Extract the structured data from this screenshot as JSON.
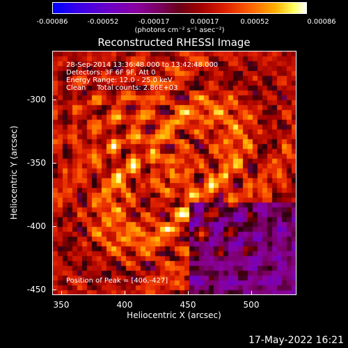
{
  "colorbar": {
    "tick_labels": [
      "-0.00086",
      "-0.00052",
      "-0.00017",
      "0.00017",
      "0.00052",
      "0.00086"
    ],
    "units_label": "(photons cm⁻² s⁻¹ asec⁻²)"
  },
  "title": "Reconstructed RHESSI Image",
  "annotations": {
    "line1": "28-Sep-2014 13:36:48.000 to 13:42:48.000",
    "line2": "Detectors: 3F 6F 9F, Att 0",
    "line3": "Energy Range: 12.0 - 25.0 keV",
    "line4": "Clean     Total counts: 2.86E+03",
    "peak": "Position of Peak = [406,-427]"
  },
  "x_axis": {
    "label": "Heliocentric X (arcsec)",
    "ticks": [
      "350",
      "400",
      "450",
      "500"
    ]
  },
  "y_axis": {
    "label": "Heliocentric Y (arcsec)",
    "ticks": [
      "-300",
      "-350",
      "-400",
      "-450"
    ]
  },
  "datestamp": "17-May-2022 16:21",
  "chart_data": {
    "type": "heatmap",
    "title": "Reconstructed RHESSI Image",
    "xlabel": "Heliocentric X (arcsec)",
    "ylabel": "Heliocentric Y (arcsec)",
    "xlim": [
      343,
      535
    ],
    "ylim": [
      -452,
      -260
    ],
    "zlim": [
      -0.00086,
      0.00086
    ],
    "peak": [
      406,
      -427
    ],
    "colormap": "rhessi-std-gamma"
  }
}
